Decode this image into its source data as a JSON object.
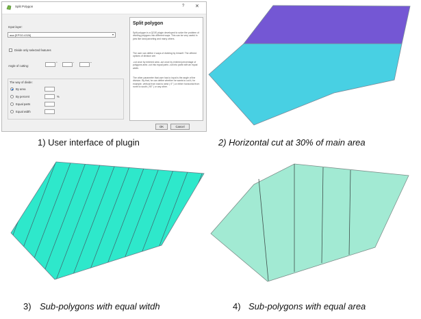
{
  "dialog": {
    "title": "Split Polygon",
    "help_glyph": "?",
    "close_glyph": "✕",
    "input_layer_label": "Input layer:",
    "input_layer_value": "aaa [EPSG:4326]",
    "divide_selected_label": "Divide only selected features",
    "angle_label": "Angle of cutting:",
    "angle_degree_marks": [
      "°",
      "'",
      "\""
    ],
    "way_label": "The way of divide:",
    "options": [
      {
        "label": "By area",
        "selected": true
      },
      {
        "label": "By percent",
        "selected": false,
        "unit": "%"
      },
      {
        "label": "Equal parts",
        "selected": false
      },
      {
        "label": "Equal width",
        "selected": false
      }
    ],
    "ok_label": "OK",
    "cancel_label": "Cancel",
    "help_title": "Split polygon",
    "help_paragraphs": [
      "Split polygon is a QGIS plugin developed to solve the problem of dividing polygons into different ways. This can be very useful in jobs like land parceling and many others.",
      "The user can define 4 ways of dividing by himself. The offered options of division are:",
      "-cut once by entered area -cut once by entered percentage of polygons area -cut into equal parts -cut into parts with an equal width.",
      "The other parameter that user has to input is the angle of the division. By that, he can define whether he wants to cut it, for example, vertical from east to west ( 0° ) or either horizontal from north to south ( 90° ) or any other."
    ]
  },
  "captions": {
    "c1": "1) User interface of plugin",
    "c2": "2) Horizontal cut at 30% of main area",
    "c3_num": "3)",
    "c3_text": "Sub-polygons with equal witdh",
    "c4_num": "4)",
    "c4_text": "Sub-polygons with equal area"
  },
  "colors": {
    "purple": "#7457d4",
    "cyan": "#48d0e3",
    "teal": "#2ee8cb",
    "mint": "#a2ead3"
  }
}
